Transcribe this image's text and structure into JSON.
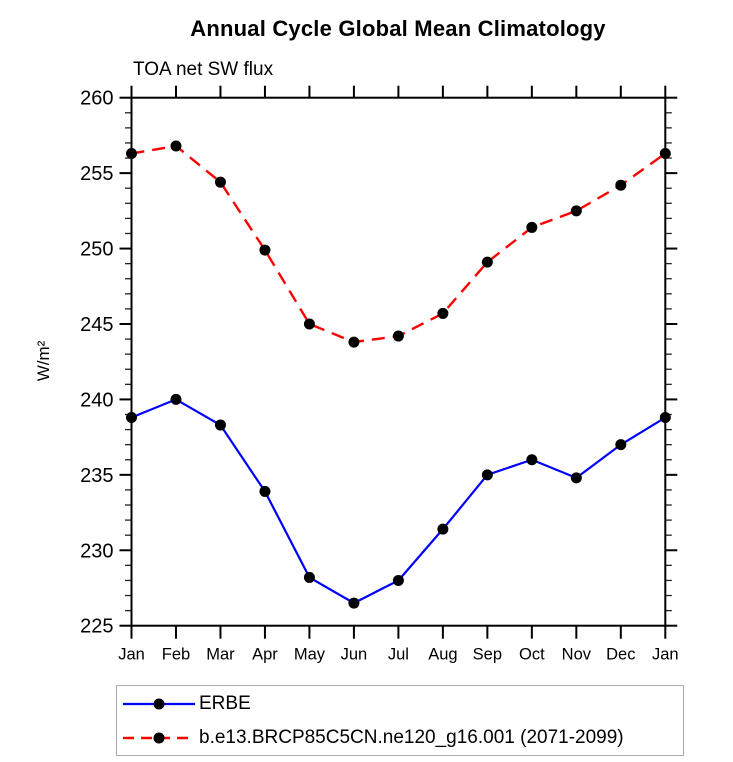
{
  "title": "Annual Cycle Global Mean Climatology",
  "subtitle": "TOA net SW flux",
  "chart_data": {
    "type": "line",
    "title": "Annual Cycle Global Mean Climatology",
    "subtitle": "TOA net SW flux",
    "xlabel": "",
    "ylabel": "W/m²",
    "categories": [
      "Jan",
      "Feb",
      "Mar",
      "Apr",
      "May",
      "Jun",
      "Jul",
      "Aug",
      "Sep",
      "Oct",
      "Nov",
      "Dec",
      "Jan"
    ],
    "ylim": [
      225,
      260
    ],
    "ytick_major": 5,
    "ytick_minor": 1,
    "grid": false,
    "legend_position": "bottom-left-box",
    "marker": {
      "shape": "filled-circle",
      "color": "#000000",
      "radius_px": 5.5
    },
    "series": [
      {
        "name": "ERBE",
        "color": "#0000ff",
        "line_style": "solid",
        "values": [
          238.8,
          240.0,
          238.3,
          233.9,
          228.2,
          226.5,
          228.0,
          231.4,
          235.0,
          236.0,
          234.8,
          237.0,
          238.8
        ]
      },
      {
        "name": "b.e13.BRCP85C5CN.ne120_g16.001 (2071-2099)",
        "color": "#ff0000",
        "line_style": "dashed",
        "values": [
          256.3,
          256.8,
          254.4,
          249.9,
          245.0,
          243.8,
          244.2,
          245.7,
          249.1,
          251.4,
          252.5,
          254.2,
          256.3
        ]
      }
    ]
  },
  "legend": {
    "entries": [
      {
        "label": "ERBE"
      },
      {
        "label": "b.e13.BRCP85C5CN.ne120_g16.001 (2071-2099)"
      }
    ]
  }
}
